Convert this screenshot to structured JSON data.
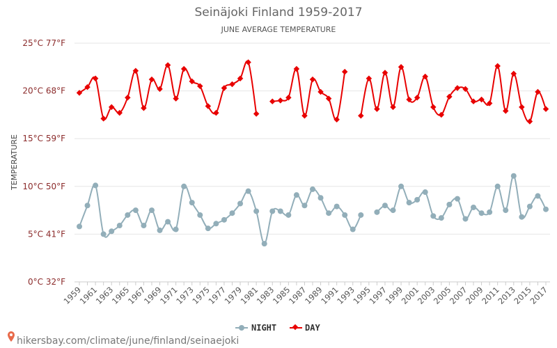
{
  "page": {
    "title": "Seinäjoki Finland 1959-2017",
    "subtitle": "JUNE AVERAGE TEMPERATURE",
    "y_axis_label": "TEMPERATURE",
    "footer_link": "hikersbay.com/climate/june/finland/seinaejoki"
  },
  "legend": {
    "night_label": "NIGHT",
    "day_label": "DAY"
  },
  "colors": {
    "night": "#92aeb9",
    "day": "#e80000",
    "footer_pin": "#e86a4a"
  },
  "chart_data": {
    "type": "line",
    "title": "Seinäjoki Finland 1959-2017",
    "subtitle": "JUNE AVERAGE TEMPERATURE",
    "xlabel": "",
    "ylabel": "TEMPERATURE",
    "ylim": [
      0,
      25
    ],
    "y_ticks": [
      {
        "value": 0,
        "label": "0°C 32°F"
      },
      {
        "value": 5,
        "label": "5°C 41°F"
      },
      {
        "value": 10,
        "label": "10°C 50°F"
      },
      {
        "value": 15,
        "label": "15°C 59°F"
      },
      {
        "value": 20,
        "label": "20°C 68°F"
      },
      {
        "value": 25,
        "label": "25°C 77°F"
      }
    ],
    "x_tick_labels": [
      "1959",
      "1961",
      "1963",
      "1965",
      "1967",
      "1969",
      "1971",
      "1973",
      "1975",
      "1977",
      "1979",
      "1981",
      "1983",
      "1985",
      "1987",
      "1989",
      "1991",
      "1993",
      "1995",
      "1997",
      "1999",
      "2001",
      "2003",
      "2005",
      "2007",
      "2009",
      "2011",
      "2013",
      "2015",
      "2017"
    ],
    "years": [
      1959,
      1960,
      1961,
      1962,
      1963,
      1964,
      1965,
      1966,
      1967,
      1968,
      1969,
      1970,
      1971,
      1972,
      1973,
      1974,
      1975,
      1976,
      1977,
      1978,
      1979,
      1980,
      1981,
      1982,
      1983,
      1984,
      1985,
      1986,
      1987,
      1988,
      1989,
      1990,
      1991,
      1992,
      1993,
      1994,
      1995,
      1996,
      1997,
      1998,
      1999,
      2000,
      2001,
      2002,
      2003,
      2004,
      2005,
      2006,
      2007,
      2008,
      2009,
      2010,
      2011,
      2012,
      2013,
      2014,
      2015,
      2016,
      2017
    ],
    "grid": true,
    "legend_position": "bottom-center",
    "series": [
      {
        "name": "NIGHT",
        "values": [
          5.8,
          8.0,
          10.1,
          5.0,
          5.3,
          5.9,
          7.0,
          7.5,
          5.9,
          7.5,
          5.4,
          6.3,
          5.5,
          10.0,
          8.3,
          7.0,
          5.6,
          6.1,
          6.5,
          7.2,
          8.2,
          9.5,
          7.4,
          4.0,
          7.4,
          7.4,
          7.0,
          9.1,
          8.0,
          9.7,
          8.8,
          7.2,
          7.9,
          7.0,
          5.5,
          7.0,
          null,
          7.3,
          8.0,
          7.5,
          10.0,
          8.3,
          8.6,
          9.4,
          6.9,
          6.7,
          8.1,
          8.7,
          6.6,
          7.8,
          7.2,
          7.3,
          10.0,
          7.5,
          11.1,
          6.8,
          7.9,
          9.0,
          7.6
        ]
      },
      {
        "name": "DAY",
        "values": [
          19.8,
          20.4,
          21.3,
          17.1,
          18.3,
          17.7,
          19.3,
          22.1,
          18.2,
          21.2,
          20.2,
          22.7,
          19.2,
          22.3,
          21.0,
          20.5,
          18.4,
          17.7,
          20.3,
          20.7,
          21.3,
          23.0,
          17.6,
          null,
          18.9,
          19.0,
          19.3,
          22.3,
          17.4,
          21.2,
          19.9,
          19.2,
          17.0,
          22.0,
          null,
          17.4,
          21.3,
          18.1,
          21.9,
          18.3,
          22.5,
          19.1,
          19.3,
          21.5,
          18.3,
          17.5,
          19.4,
          20.3,
          20.2,
          18.9,
          19.1,
          18.7,
          22.6,
          17.9,
          21.8,
          18.3,
          16.8,
          19.9,
          18.1
        ]
      }
    ]
  }
}
